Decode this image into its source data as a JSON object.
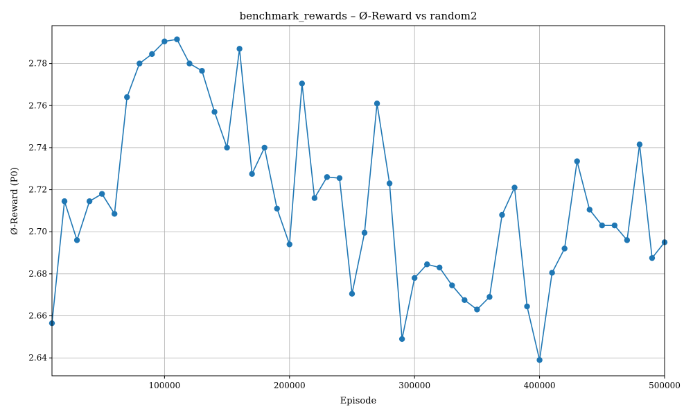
{
  "chart_data": {
    "type": "line",
    "title": "benchmark_rewards – Ø-Reward vs random2",
    "xlabel": "Episode",
    "ylabel": "Ø-Reward (P0)",
    "xlim": [
      10000,
      500000
    ],
    "ylim": [
      2.6315,
      2.798
    ],
    "xticks": [
      100000,
      200000,
      300000,
      400000,
      500000
    ],
    "yticks": [
      2.64,
      2.66,
      2.68,
      2.7,
      2.72,
      2.74,
      2.76,
      2.78
    ],
    "grid": true,
    "marker": "circle",
    "color": "#1f77b4",
    "series": [
      {
        "x": [
          10000,
          20000,
          30000,
          40000,
          50000,
          60000,
          70000,
          80000,
          90000,
          100000,
          110000,
          120000,
          130000,
          140000,
          150000,
          160000,
          170000,
          180000,
          190000,
          200000,
          210000,
          220000,
          230000,
          240000,
          250000,
          260000,
          270000,
          280000,
          290000,
          300000,
          310000,
          320000,
          330000,
          340000,
          350000,
          360000,
          370000,
          380000,
          390000,
          400000,
          410000,
          420000,
          430000,
          440000,
          450000,
          460000,
          470000,
          480000,
          490000,
          500000
        ],
        "values": [
          2.6565,
          2.7145,
          2.696,
          2.7145,
          2.718,
          2.7085,
          2.764,
          2.78,
          2.7845,
          2.7905,
          2.7915,
          2.78,
          2.7765,
          2.757,
          2.74,
          2.787,
          2.7275,
          2.74,
          2.711,
          2.694,
          2.7705,
          2.716,
          2.726,
          2.7255,
          2.6705,
          2.6995,
          2.761,
          2.723,
          2.649,
          2.678,
          2.6845,
          2.683,
          2.6745,
          2.6675,
          2.663,
          2.669,
          2.708,
          2.721,
          2.6645,
          2.639,
          2.6805,
          2.692,
          2.7335,
          2.7105,
          2.703,
          2.703,
          2.696,
          2.7415,
          2.6875,
          2.695
        ]
      }
    ]
  }
}
